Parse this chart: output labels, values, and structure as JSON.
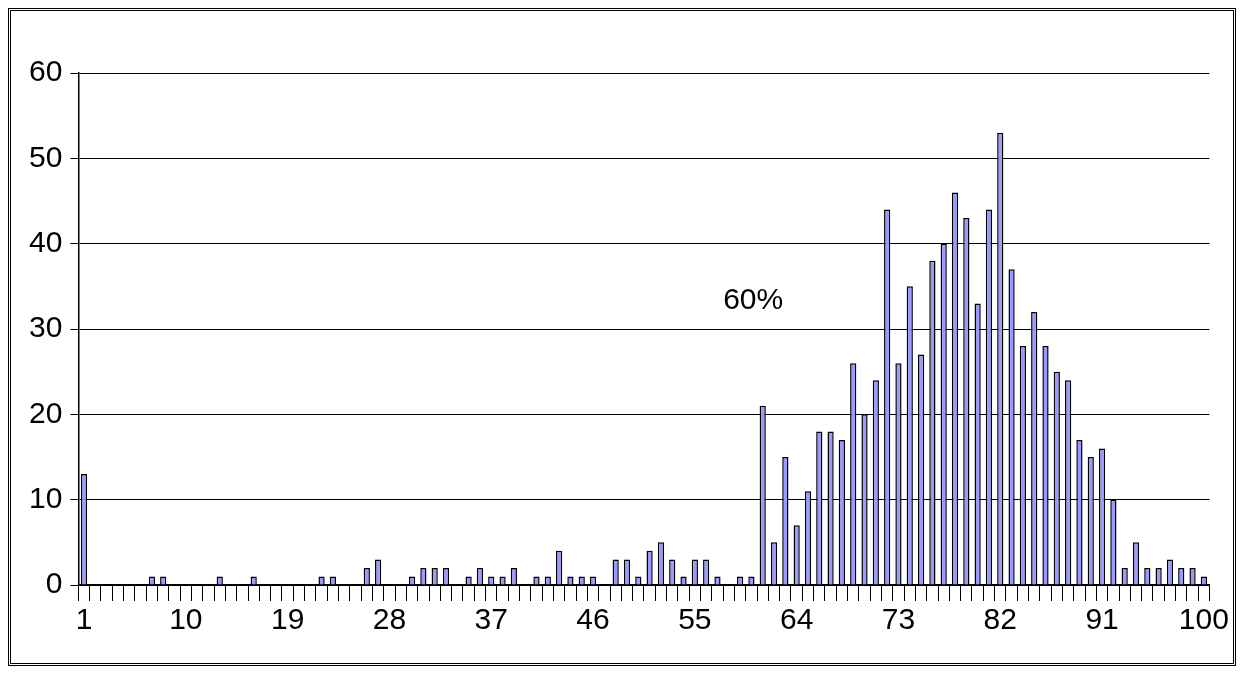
{
  "chart_data": {
    "type": "bar",
    "categories": [
      "1",
      null,
      null,
      null,
      null,
      null,
      null,
      null,
      null,
      "10",
      null,
      null,
      null,
      null,
      null,
      null,
      null,
      null,
      "19",
      null,
      null,
      null,
      null,
      null,
      null,
      null,
      null,
      "28",
      null,
      null,
      null,
      null,
      null,
      null,
      null,
      null,
      "37",
      null,
      null,
      null,
      null,
      null,
      null,
      null,
      null,
      "46",
      null,
      null,
      null,
      null,
      null,
      null,
      null,
      null,
      "55",
      null,
      null,
      null,
      null,
      null,
      null,
      null,
      null,
      "64",
      null,
      null,
      null,
      null,
      null,
      null,
      null,
      null,
      "73",
      null,
      null,
      null,
      null,
      null,
      null,
      null,
      null,
      "82",
      null,
      null,
      null,
      null,
      null,
      null,
      null,
      null,
      "91",
      null,
      null,
      null,
      null,
      null,
      null,
      null,
      null,
      "100"
    ],
    "values": [
      13,
      0,
      0,
      0,
      0,
      0,
      1,
      1,
      0,
      0,
      0,
      0,
      1,
      0,
      0,
      1,
      0,
      0,
      0,
      0,
      0,
      1,
      1,
      0,
      0,
      2,
      3,
      0,
      0,
      1,
      2,
      2,
      2,
      0,
      1,
      2,
      1,
      1,
      2,
      0,
      1,
      1,
      4,
      1,
      1,
      1,
      0,
      3,
      3,
      1,
      4,
      5,
      3,
      1,
      3,
      3,
      1,
      0,
      1,
      1,
      21,
      5,
      15,
      7,
      11,
      18,
      18,
      17,
      26,
      20,
      24,
      44,
      26,
      35,
      27,
      38,
      40,
      46,
      43,
      33,
      44,
      53,
      37,
      28,
      32,
      28,
      25,
      24,
      17,
      15,
      16,
      10,
      2,
      5,
      2,
      2,
      3,
      2,
      2,
      1
    ],
    "color": "#9999ff",
    "ylim": [
      0,
      60
    ],
    "yticks": [
      0,
      10,
      20,
      30,
      40,
      50,
      60
    ],
    "grid": "y",
    "annotations": [
      "60%"
    ]
  }
}
